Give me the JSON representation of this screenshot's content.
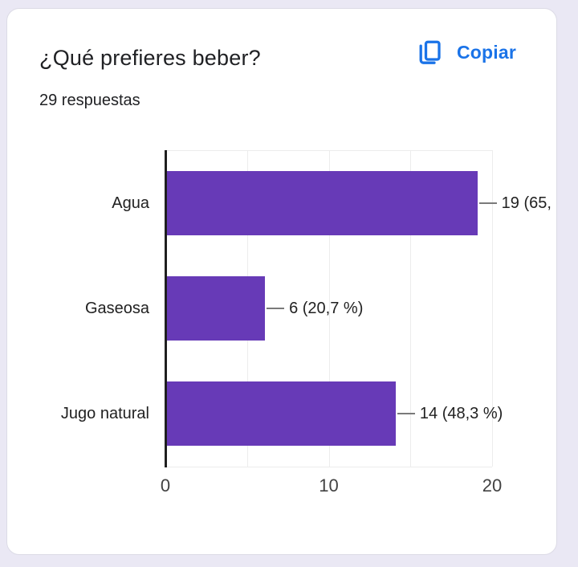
{
  "page": {
    "background": "#eae8f4"
  },
  "colors": {
    "bar_purple": "#673ab7",
    "link_blue": "#1a73e8",
    "axis_dark": "#1f1f1f",
    "gridline_gray": "#ececec",
    "leader_gray": "#7a7a7a"
  },
  "card": {
    "header": {
      "title": "¿Qué prefieres beber?",
      "subtitle": "29 respuestas",
      "copy_label": "Copiar"
    }
  },
  "chart_data": {
    "type": "bar",
    "orientation": "horizontal",
    "title": "¿Qué prefieres beber?",
    "subtitle": "29 respuestas",
    "categories": [
      "Agua",
      "Gaseosa",
      "Jugo natural"
    ],
    "values": [
      19,
      6,
      14
    ],
    "bar_labels": [
      "19 (65,",
      "6 (20,7 %)",
      "14 (48,3 %)"
    ],
    "xlim": [
      0,
      20
    ],
    "xticks": [
      0,
      10,
      20
    ],
    "gridlines": [
      5,
      10,
      15,
      20
    ],
    "grid": true,
    "legend": false,
    "bar_color": "#673ab7",
    "xlabel": "",
    "ylabel": ""
  }
}
